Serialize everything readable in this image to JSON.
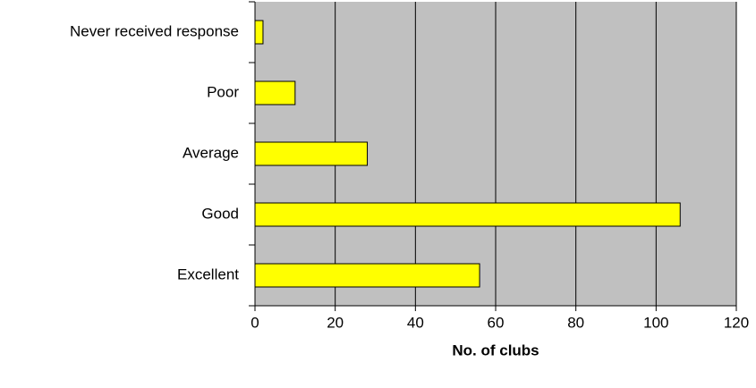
{
  "chart_data": {
    "type": "bar",
    "orientation": "horizontal",
    "categories": [
      "Never received response",
      "Poor",
      "Average",
      "Good",
      "Excellent"
    ],
    "values": [
      2,
      10,
      28,
      106,
      56
    ],
    "color": "#ffff00",
    "x_label": "No. of clubs",
    "xlim": [
      0,
      120
    ],
    "xticks": [
      0,
      20,
      40,
      60,
      80,
      100,
      120
    ],
    "grid": true
  }
}
